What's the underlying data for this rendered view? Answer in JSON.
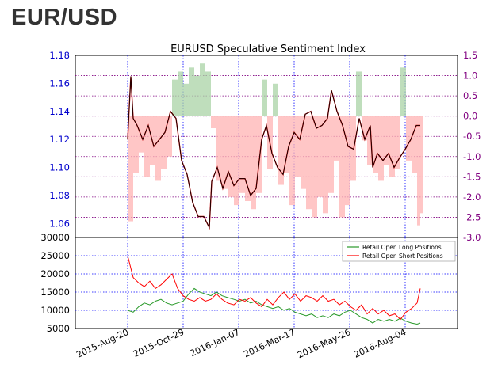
{
  "page": {
    "title": "EUR/USD"
  },
  "chart_data": [
    {
      "id": "price_sentiment",
      "type": "line",
      "title": "EURUSD Speculative Sentiment Index",
      "left_axis": {
        "ticks": [
          "1.06",
          "1.08",
          "1.10",
          "1.12",
          "1.14",
          "1.16",
          "1.18"
        ],
        "range": [
          1.05,
          1.18
        ],
        "color": "#0000cc"
      },
      "right_axis": {
        "ticks": [
          "-3.0",
          "-2.5",
          "-2.0",
          "-1.5",
          "-1.0",
          "-0.5",
          "0.0",
          "0.5",
          "1.0",
          "1.5"
        ],
        "range": [
          -3.0,
          1.5
        ],
        "color": "#800080"
      },
      "x_ticks": [
        "2015-Aug-20",
        "2015-Oct-29",
        "2016-Jan-07",
        "2016-Mar-17",
        "2016-May-26",
        "2016-Aug-04"
      ],
      "grid": true,
      "series": [
        {
          "kind": "price",
          "color": "#000000",
          "points": [
            [
              "2015-08-20",
              1.12
            ],
            [
              "2015-08-24",
              1.165
            ],
            [
              "2015-08-27",
              1.135
            ],
            [
              "2015-09-01",
              1.13
            ],
            [
              "2015-09-08",
              1.12
            ],
            [
              "2015-09-15",
              1.13
            ],
            [
              "2015-09-22",
              1.115
            ],
            [
              "2015-09-29",
              1.12
            ],
            [
              "2015-10-06",
              1.125
            ],
            [
              "2015-10-13",
              1.14
            ],
            [
              "2015-10-20",
              1.135
            ],
            [
              "2015-10-27",
              1.105
            ],
            [
              "2015-11-03",
              1.095
            ],
            [
              "2015-11-10",
              1.075
            ],
            [
              "2015-11-17",
              1.065
            ],
            [
              "2015-11-24",
              1.065
            ],
            [
              "2015-12-01",
              1.057
            ],
            [
              "2015-12-04",
              1.09
            ],
            [
              "2015-12-11",
              1.1
            ],
            [
              "2015-12-18",
              1.085
            ],
            [
              "2015-12-25",
              1.097
            ],
            [
              "2016-01-01",
              1.087
            ],
            [
              "2016-01-08",
              1.092
            ],
            [
              "2016-01-15",
              1.092
            ],
            [
              "2016-01-22",
              1.08
            ],
            [
              "2016-01-29",
              1.085
            ],
            [
              "2016-02-05",
              1.12
            ],
            [
              "2016-02-11",
              1.13
            ],
            [
              "2016-02-18",
              1.11
            ],
            [
              "2016-02-25",
              1.1
            ],
            [
              "2016-03-03",
              1.095
            ],
            [
              "2016-03-10",
              1.115
            ],
            [
              "2016-03-17",
              1.125
            ],
            [
              "2016-03-24",
              1.12
            ],
            [
              "2016-03-31",
              1.138
            ],
            [
              "2016-04-07",
              1.14
            ],
            [
              "2016-04-14",
              1.128
            ],
            [
              "2016-04-21",
              1.13
            ],
            [
              "2016-04-28",
              1.135
            ],
            [
              "2016-05-03",
              1.155
            ],
            [
              "2016-05-10",
              1.14
            ],
            [
              "2016-05-17",
              1.13
            ],
            [
              "2016-05-24",
              1.115
            ],
            [
              "2016-05-31",
              1.113
            ],
            [
              "2016-06-07",
              1.135
            ],
            [
              "2016-06-14",
              1.12
            ],
            [
              "2016-06-21",
              1.13
            ],
            [
              "2016-06-24",
              1.1
            ],
            [
              "2016-06-30",
              1.11
            ],
            [
              "2016-07-07",
              1.105
            ],
            [
              "2016-07-14",
              1.11
            ],
            [
              "2016-07-21",
              1.1
            ],
            [
              "2016-07-28",
              1.107
            ],
            [
              "2016-08-04",
              1.113
            ],
            [
              "2016-08-11",
              1.12
            ],
            [
              "2016-08-18",
              1.13
            ],
            [
              "2016-08-23",
              1.13
            ]
          ]
        },
        {
          "kind": "ssi",
          "name": "SSI",
          "note": "bars: green above 0, red below 0",
          "points": [
            [
              "2015-08-20",
              -2.6
            ],
            [
              "2015-08-27",
              -1.4
            ],
            [
              "2015-09-03",
              -0.9
            ],
            [
              "2015-09-10",
              -1.5
            ],
            [
              "2015-09-17",
              -1.2
            ],
            [
              "2015-09-24",
              -1.6
            ],
            [
              "2015-10-01",
              -1.3
            ],
            [
              "2015-10-08",
              -1.0
            ],
            [
              "2015-10-15",
              0.9
            ],
            [
              "2015-10-22",
              1.1
            ],
            [
              "2015-10-29",
              0.8
            ],
            [
              "2015-11-05",
              1.2
            ],
            [
              "2015-11-12",
              1.0
            ],
            [
              "2015-11-19",
              1.3
            ],
            [
              "2015-11-26",
              1.1
            ],
            [
              "2015-12-03",
              -0.3
            ],
            [
              "2015-12-10",
              -1.6
            ],
            [
              "2015-12-17",
              -1.8
            ],
            [
              "2015-12-24",
              -2.0
            ],
            [
              "2016-01-01",
              -2.2
            ],
            [
              "2016-01-08",
              -1.9
            ],
            [
              "2016-01-15",
              -2.1
            ],
            [
              "2016-01-22",
              -2.3
            ],
            [
              "2016-01-29",
              -1.9
            ],
            [
              "2016-02-05",
              0.9
            ],
            [
              "2016-02-12",
              -1.3
            ],
            [
              "2016-02-19",
              0.8
            ],
            [
              "2016-02-26",
              -1.7
            ],
            [
              "2016-03-04",
              -1.4
            ],
            [
              "2016-03-11",
              -2.2
            ],
            [
              "2016-03-18",
              -1.5
            ],
            [
              "2016-03-25",
              -1.8
            ],
            [
              "2016-04-01",
              -2.3
            ],
            [
              "2016-04-08",
              -2.5
            ],
            [
              "2016-04-15",
              -2.0
            ],
            [
              "2016-04-22",
              -2.4
            ],
            [
              "2016-04-29",
              -1.9
            ],
            [
              "2016-05-06",
              -1.1
            ],
            [
              "2016-05-13",
              -2.5
            ],
            [
              "2016-05-20",
              -2.2
            ],
            [
              "2016-05-27",
              -1.6
            ],
            [
              "2016-06-03",
              1.1
            ],
            [
              "2016-06-10",
              -0.6
            ],
            [
              "2016-06-17",
              -1.2
            ],
            [
              "2016-06-24",
              -1.4
            ],
            [
              "2016-07-01",
              -1.6
            ],
            [
              "2016-07-08",
              -1.2
            ],
            [
              "2016-07-15",
              -1.5
            ],
            [
              "2016-07-22",
              -1.3
            ],
            [
              "2016-07-29",
              1.2
            ],
            [
              "2016-08-05",
              -1.1
            ],
            [
              "2016-08-12",
              -1.4
            ],
            [
              "2016-08-19",
              -2.7
            ],
            [
              "2016-08-23",
              -2.4
            ]
          ]
        }
      ]
    },
    {
      "id": "positions",
      "type": "line",
      "y_ticks": [
        "5000",
        "10000",
        "15000",
        "20000",
        "25000",
        "30000"
      ],
      "ylim": [
        5000,
        30000
      ],
      "x_ticks": [
        "2015-Aug-20",
        "2015-Oct-29",
        "2016-Jan-07",
        "2016-Mar-17",
        "2016-May-26",
        "2016-Aug-04"
      ],
      "legend_position": "top-right",
      "grid": true,
      "series": [
        {
          "name": "Retail Open Long Positions",
          "color": "#2a9a2a",
          "points": [
            [
              "2015-08-20",
              10000
            ],
            [
              "2015-08-27",
              9500
            ],
            [
              "2015-09-03",
              11000
            ],
            [
              "2015-09-10",
              12000
            ],
            [
              "2015-09-17",
              11500
            ],
            [
              "2015-09-24",
              12500
            ],
            [
              "2015-10-01",
              13000
            ],
            [
              "2015-10-08",
              12000
            ],
            [
              "2015-10-15",
              11500
            ],
            [
              "2015-10-22",
              12000
            ],
            [
              "2015-10-29",
              12500
            ],
            [
              "2015-11-05",
              14500
            ],
            [
              "2015-11-12",
              16000
            ],
            [
              "2015-11-19",
              15000
            ],
            [
              "2015-11-26",
              14500
            ],
            [
              "2015-12-03",
              14000
            ],
            [
              "2015-12-10",
              15000
            ],
            [
              "2015-12-17",
              14000
            ],
            [
              "2015-12-24",
              13500
            ],
            [
              "2016-01-01",
              13000
            ],
            [
              "2016-01-08",
              12500
            ],
            [
              "2016-01-15",
              13000
            ],
            [
              "2016-01-22",
              12000
            ],
            [
              "2016-01-29",
              12500
            ],
            [
              "2016-02-05",
              11500
            ],
            [
              "2016-02-12",
              11000
            ],
            [
              "2016-02-19",
              10500
            ],
            [
              "2016-02-26",
              11000
            ],
            [
              "2016-03-04",
              10000
            ],
            [
              "2016-03-11",
              10500
            ],
            [
              "2016-03-18",
              9500
            ],
            [
              "2016-03-25",
              9000
            ],
            [
              "2016-04-01",
              8500
            ],
            [
              "2016-04-08",
              9000
            ],
            [
              "2016-04-15",
              8000
            ],
            [
              "2016-04-22",
              8500
            ],
            [
              "2016-04-29",
              8000
            ],
            [
              "2016-05-06",
              9000
            ],
            [
              "2016-05-13",
              8500
            ],
            [
              "2016-05-20",
              9500
            ],
            [
              "2016-05-27",
              10000
            ],
            [
              "2016-06-03",
              9000
            ],
            [
              "2016-06-10",
              8000
            ],
            [
              "2016-06-17",
              7500
            ],
            [
              "2016-06-24",
              6500
            ],
            [
              "2016-07-01",
              7500
            ],
            [
              "2016-07-08",
              7000
            ],
            [
              "2016-07-15",
              7500
            ],
            [
              "2016-07-22",
              7000
            ],
            [
              "2016-07-29",
              7800
            ],
            [
              "2016-08-05",
              7000
            ],
            [
              "2016-08-12",
              6500
            ],
            [
              "2016-08-19",
              6200
            ],
            [
              "2016-08-23",
              6500
            ]
          ]
        },
        {
          "name": "Retail Open Short Positions",
          "color": "#ff0000",
          "points": [
            [
              "2015-08-20",
              25000
            ],
            [
              "2015-08-27",
              19000
            ],
            [
              "2015-09-03",
              17500
            ],
            [
              "2015-09-10",
              16500
            ],
            [
              "2015-09-17",
              18000
            ],
            [
              "2015-09-24",
              16000
            ],
            [
              "2015-10-01",
              17000
            ],
            [
              "2015-10-08",
              18500
            ],
            [
              "2015-10-15",
              20000
            ],
            [
              "2015-10-22",
              16000
            ],
            [
              "2015-10-29",
              14000
            ],
            [
              "2015-11-05",
              13000
            ],
            [
              "2015-11-12",
              12500
            ],
            [
              "2015-11-19",
              13500
            ],
            [
              "2015-11-26",
              12500
            ],
            [
              "2015-12-03",
              13000
            ],
            [
              "2015-12-10",
              14500
            ],
            [
              "2015-12-17",
              13000
            ],
            [
              "2015-12-24",
              12000
            ],
            [
              "2016-01-01",
              11500
            ],
            [
              "2016-01-08",
              13000
            ],
            [
              "2016-01-15",
              12500
            ],
            [
              "2016-01-22",
              13500
            ],
            [
              "2016-01-29",
              12000
            ],
            [
              "2016-02-05",
              11000
            ],
            [
              "2016-02-12",
              13000
            ],
            [
              "2016-02-19",
              11500
            ],
            [
              "2016-02-26",
              13500
            ],
            [
              "2016-03-04",
              15000
            ],
            [
              "2016-03-11",
              13000
            ],
            [
              "2016-03-18",
              14500
            ],
            [
              "2016-03-25",
              12500
            ],
            [
              "2016-04-01",
              14000
            ],
            [
              "2016-04-08",
              13500
            ],
            [
              "2016-04-15",
              12500
            ],
            [
              "2016-04-22",
              14000
            ],
            [
              "2016-04-29",
              12500
            ],
            [
              "2016-05-06",
              13000
            ],
            [
              "2016-05-13",
              11500
            ],
            [
              "2016-05-20",
              12500
            ],
            [
              "2016-05-27",
              11000
            ],
            [
              "2016-06-03",
              10000
            ],
            [
              "2016-06-10",
              11500
            ],
            [
              "2016-06-17",
              9000
            ],
            [
              "2016-06-24",
              10500
            ],
            [
              "2016-07-01",
              9000
            ],
            [
              "2016-07-08",
              10000
            ],
            [
              "2016-07-15",
              8500
            ],
            [
              "2016-07-22",
              9000
            ],
            [
              "2016-07-29",
              7500
            ],
            [
              "2016-08-05",
              9500
            ],
            [
              "2016-08-12",
              10500
            ],
            [
              "2016-08-19",
              12000
            ],
            [
              "2016-08-23",
              16000
            ]
          ]
        }
      ]
    }
  ]
}
